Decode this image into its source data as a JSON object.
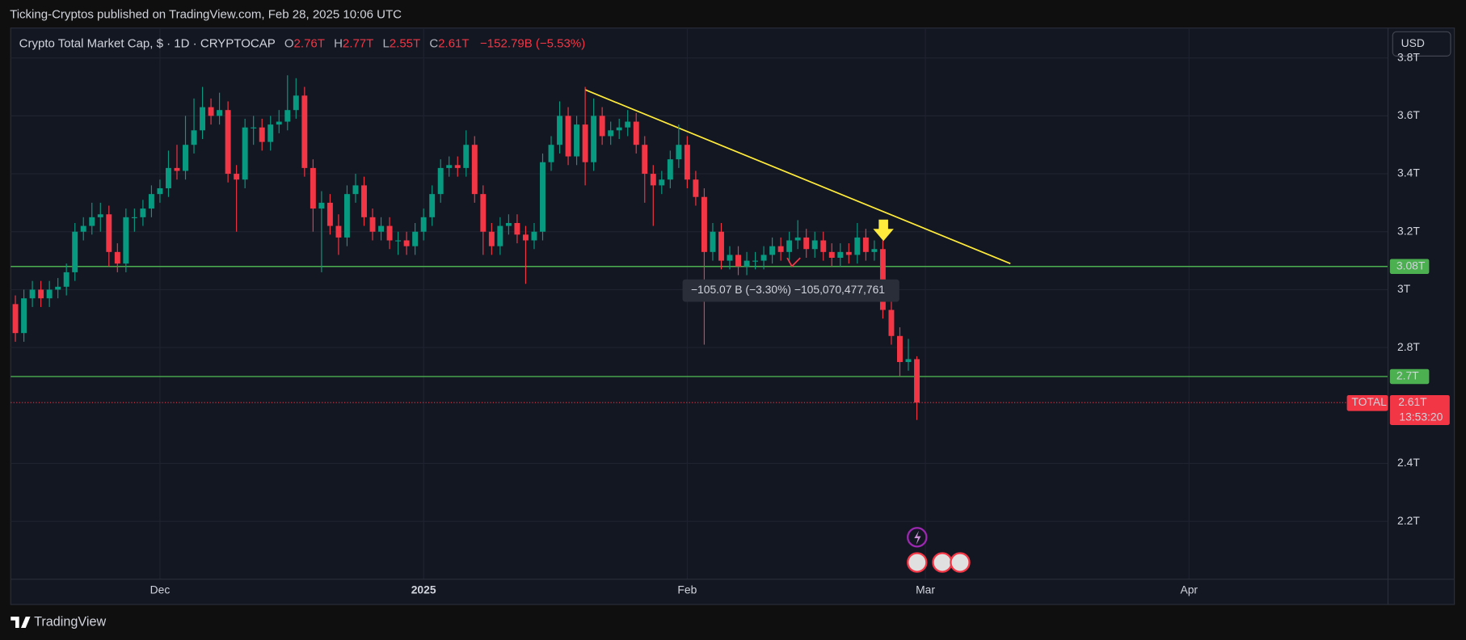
{
  "header": {
    "text": "Ticking-Cryptos published on TradingView.com, Feb 28, 2025 10:06 UTC"
  },
  "chart_data": {
    "type": "candlestick",
    "title": "Crypto Total Market Cap, $ · 1D · CRYPTOCAP",
    "legend": {
      "open_key": "O",
      "open": "2.76T",
      "high_key": "H",
      "high": "2.77T",
      "low_key": "L",
      "low": "2.55T",
      "close_key": "C",
      "close": "2.61T",
      "change": "−152.79B (−5.53%)"
    },
    "currency": "USD",
    "up_color": "#089981",
    "down_color": "#f23645",
    "open": [
      2.95,
      2.85,
      2.97,
      3.0,
      2.97,
      3.0,
      3.01,
      3.06,
      3.2,
      3.22,
      3.25,
      3.26,
      3.13,
      3.09,
      3.25,
      3.25,
      3.28,
      3.33,
      3.35,
      3.42,
      3.41,
      3.5,
      3.55,
      3.63,
      3.6,
      3.62,
      3.4,
      3.38,
      3.56,
      3.56,
      3.51,
      3.57,
      3.58,
      3.62,
      3.67,
      3.42,
      3.28,
      3.3,
      3.22,
      3.18,
      3.33,
      3.36,
      3.25,
      3.2,
      3.22,
      3.17,
      3.17,
      3.15,
      3.2,
      3.25,
      3.33,
      3.42,
      3.43,
      3.42,
      3.5,
      3.33,
      3.2,
      3.15,
      3.22,
      3.23,
      3.19,
      3.17,
      3.2,
      3.44,
      3.5,
      3.6,
      3.46,
      3.57,
      3.44,
      3.6,
      3.53,
      3.55,
      3.56,
      3.58,
      3.5,
      3.4,
      3.36,
      3.38,
      3.45,
      3.5,
      3.38,
      3.32,
      3.13,
      3.2,
      3.1,
      3.12,
      3.08,
      3.1,
      3.1,
      3.12,
      3.15,
      3.13,
      3.17,
      3.18,
      3.14,
      3.17,
      3.13,
      3.11,
      3.13,
      3.12,
      3.18,
      3.13,
      3.14,
      2.93,
      2.84,
      2.75,
      2.76
    ],
    "high": [
      2.98,
      3.0,
      3.03,
      3.03,
      3.03,
      3.04,
      3.09,
      3.23,
      3.25,
      3.3,
      3.3,
      3.29,
      3.16,
      3.28,
      3.28,
      3.31,
      3.36,
      3.38,
      3.48,
      3.5,
      3.6,
      3.66,
      3.7,
      3.66,
      3.68,
      3.65,
      3.43,
      3.59,
      3.6,
      3.59,
      3.6,
      3.62,
      3.74,
      3.73,
      3.7,
      3.45,
      3.34,
      3.33,
      3.26,
      3.36,
      3.4,
      3.39,
      3.28,
      3.25,
      3.25,
      3.2,
      3.2,
      3.23,
      3.28,
      3.36,
      3.45,
      3.46,
      3.46,
      3.55,
      3.53,
      3.36,
      3.23,
      3.25,
      3.26,
      3.26,
      3.22,
      3.23,
      3.47,
      3.53,
      3.65,
      3.63,
      3.6,
      3.7,
      3.66,
      3.63,
      3.58,
      3.59,
      3.62,
      3.61,
      3.53,
      3.43,
      3.41,
      3.48,
      3.57,
      3.53,
      3.41,
      3.35,
      3.23,
      3.23,
      3.15,
      3.15,
      3.13,
      3.13,
      3.15,
      3.18,
      3.18,
      3.2,
      3.24,
      3.21,
      3.2,
      3.2,
      3.16,
      3.16,
      3.16,
      3.23,
      3.21,
      3.17,
      3.17,
      2.96,
      2.87,
      2.83,
      2.77
    ],
    "low": [
      2.82,
      2.82,
      2.94,
      2.94,
      2.94,
      2.97,
      2.98,
      3.03,
      3.17,
      3.19,
      3.2,
      3.08,
      3.06,
      3.06,
      3.2,
      3.22,
      3.25,
      3.3,
      3.32,
      3.38,
      3.38,
      3.47,
      3.52,
      3.57,
      3.57,
      3.37,
      3.2,
      3.35,
      3.5,
      3.48,
      3.48,
      3.54,
      3.55,
      3.59,
      3.39,
      3.2,
      3.06,
      3.19,
      3.12,
      3.15,
      3.3,
      3.22,
      3.17,
      3.17,
      3.14,
      3.12,
      3.12,
      3.12,
      3.17,
      3.22,
      3.3,
      3.39,
      3.39,
      3.39,
      3.3,
      3.12,
      3.12,
      3.12,
      3.19,
      3.16,
      3.02,
      3.14,
      3.17,
      3.41,
      3.47,
      3.43,
      3.43,
      3.36,
      3.41,
      3.5,
      3.5,
      3.52,
      3.53,
      3.47,
      3.3,
      3.22,
      3.33,
      3.35,
      3.42,
      3.35,
      3.29,
      2.81,
      3.1,
      3.07,
      3.07,
      3.05,
      3.05,
      3.07,
      3.07,
      3.09,
      3.1,
      3.1,
      3.14,
      3.11,
      3.11,
      3.1,
      3.08,
      3.08,
      3.09,
      3.09,
      3.1,
      3.1,
      2.9,
      2.81,
      2.7,
      2.72,
      2.55
    ],
    "close": [
      2.85,
      2.97,
      3.0,
      2.97,
      3.0,
      3.01,
      3.06,
      3.2,
      3.22,
      3.25,
      3.26,
      3.13,
      3.09,
      3.25,
      3.25,
      3.28,
      3.33,
      3.35,
      3.42,
      3.41,
      3.5,
      3.55,
      3.63,
      3.6,
      3.62,
      3.4,
      3.38,
      3.56,
      3.56,
      3.51,
      3.57,
      3.58,
      3.62,
      3.67,
      3.42,
      3.28,
      3.3,
      3.22,
      3.18,
      3.33,
      3.36,
      3.25,
      3.2,
      3.22,
      3.17,
      3.17,
      3.15,
      3.2,
      3.25,
      3.33,
      3.42,
      3.43,
      3.42,
      3.5,
      3.33,
      3.2,
      3.15,
      3.22,
      3.23,
      3.19,
      3.17,
      3.2,
      3.44,
      3.5,
      3.6,
      3.46,
      3.57,
      3.44,
      3.6,
      3.53,
      3.55,
      3.56,
      3.58,
      3.5,
      3.4,
      3.36,
      3.38,
      3.45,
      3.5,
      3.38,
      3.32,
      3.13,
      3.2,
      3.1,
      3.12,
      3.08,
      3.1,
      3.1,
      3.12,
      3.15,
      3.13,
      3.17,
      3.18,
      3.14,
      3.17,
      3.13,
      3.11,
      3.13,
      3.12,
      3.18,
      3.13,
      3.14,
      2.93,
      2.84,
      2.75,
      2.76,
      2.61
    ],
    "xlim": [
      -0.55,
      161.4
    ],
    "xticks": [
      {
        "value": 17,
        "label": "Dec"
      },
      {
        "value": 48,
        "label": "2025"
      },
      {
        "value": 79,
        "label": "Feb"
      },
      {
        "value": 107,
        "label": "Mar"
      },
      {
        "value": 138,
        "label": "Apr"
      }
    ],
    "ylim": [
      2.0,
      3.9
    ],
    "yticks": [
      {
        "value": 2.2,
        "label": "2.2T"
      },
      {
        "value": 2.4,
        "label": "2.4T"
      },
      {
        "value": 2.8,
        "label": "2.8T"
      },
      {
        "value": 3.0,
        "label": "3T"
      },
      {
        "value": 3.2,
        "label": "3.2T"
      },
      {
        "value": 3.4,
        "label": "3.4T"
      },
      {
        "value": 3.6,
        "label": "3.6T"
      },
      {
        "value": 3.8,
        "label": "3.8T"
      }
    ],
    "grid": true,
    "levels": [
      {
        "value": 3.08,
        "label": "3.08T",
        "color": "#4caf50"
      },
      {
        "value": 2.7,
        "label": "2.7T",
        "color": "#4caf50"
      }
    ],
    "trendline": {
      "x": [
        67,
        117
      ],
      "y": [
        3.69,
        3.09
      ],
      "color": "#ffeb3b"
    },
    "last_price": {
      "value": 2.61,
      "label": "2.61T",
      "name": "TOTAL",
      "countdown": "13:53:20"
    },
    "measurement": "−105.07 B (−3.30%) −105,070,477,761"
  },
  "footer": {
    "brand": "TradingView"
  }
}
